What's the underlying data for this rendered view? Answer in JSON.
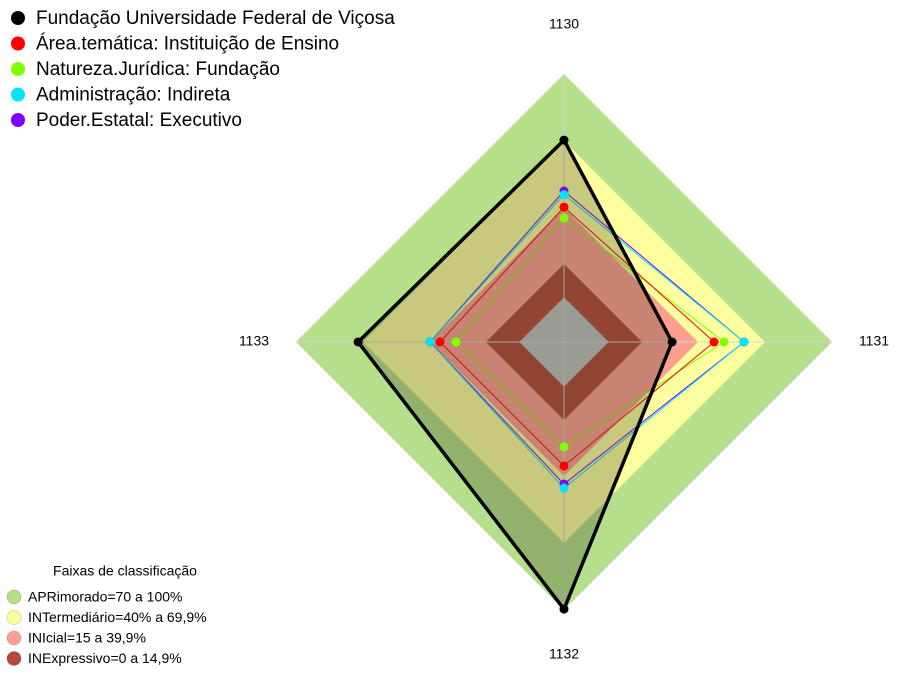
{
  "chart_data": {
    "type": "radar",
    "categories": [
      "1130",
      "1131",
      "1132",
      "1133"
    ],
    "rlim": [
      -20,
      100
    ],
    "series": [
      {
        "name": "Fundação Universidade Federal de Viçosa",
        "color": "#000000",
        "values": [
          70.4,
          28.4,
          99.6,
          72.2
        ]
      },
      {
        "name": "Área.temática: Instituição de Ensino",
        "color": "#ff0000",
        "values": [
          40.4,
          47.2,
          35.5,
          35.5
        ]
      },
      {
        "name": "Natureza.Jurídica: Fundação",
        "color": "#80ff00",
        "values": [
          35.5,
          51.6,
          27,
          28.4
        ]
      },
      {
        "name": "Administração: Indireta",
        "color": "#00e5ff",
        "values": [
          46,
          60.6,
          45.4,
          40
        ]
      },
      {
        "name": "Poder.Estatal: Executivo",
        "color": "#8000ff",
        "values": [
          47.6,
          60.6,
          43.6,
          40
        ]
      }
    ],
    "band_legend_title": "Faixas de classificação",
    "bands": [
      {
        "name": "APRimorado=70 a 100%",
        "color": "#b5df8a",
        "range": [
          70,
          100
        ]
      },
      {
        "name": "INTermediário=40% a 69,9%",
        "color": "#ffffa0",
        "range": [
          40,
          70
        ]
      },
      {
        "name": "INIcial=15 a 39,9%",
        "color": "#ff9f8f",
        "range": [
          15,
          40
        ]
      },
      {
        "name": "INExpressivo=0 a 14,9%",
        "color": "#b5483a",
        "range": [
          0,
          15
        ]
      }
    ]
  }
}
